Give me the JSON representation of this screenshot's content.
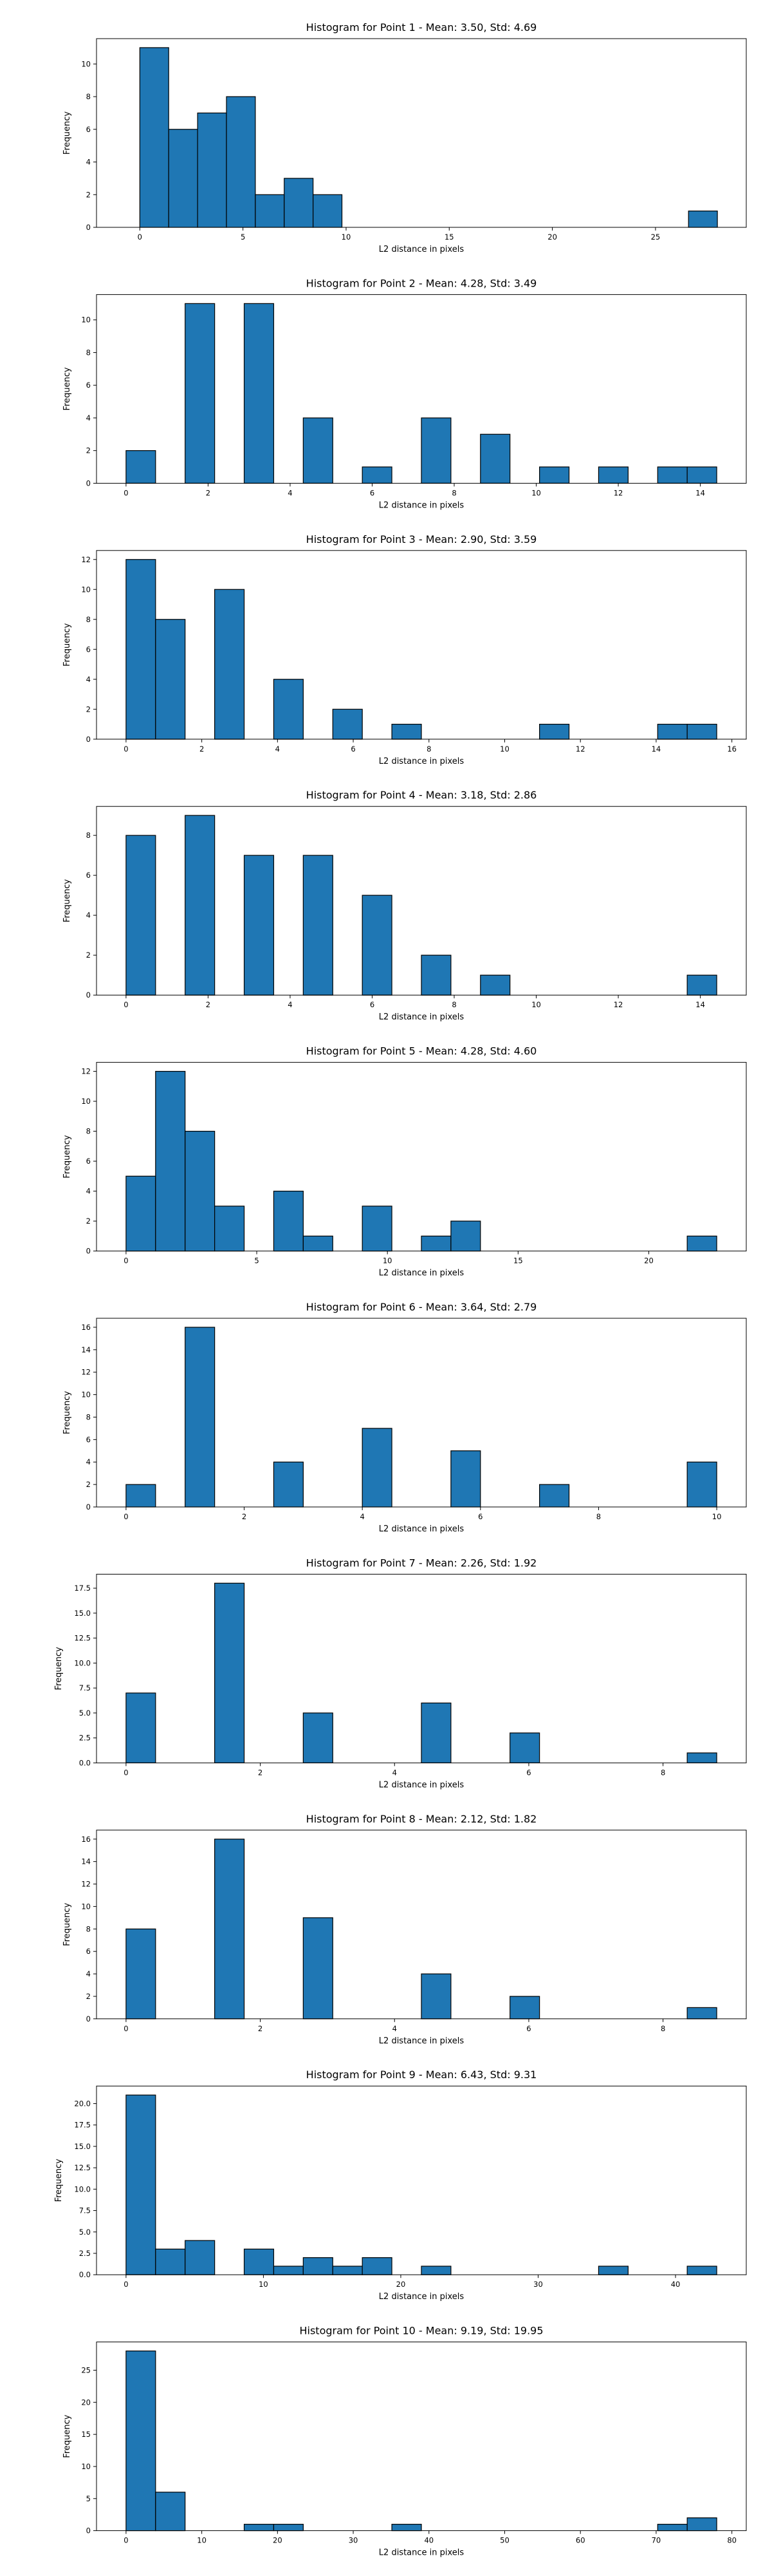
{
  "colors": {
    "bar_fill": "#1f77b4",
    "bar_edge": "#000000",
    "background": "#ffffff"
  },
  "chart_data": [
    {
      "type": "bar",
      "title": "Histogram for Point 1 - Mean: 3.50, Std: 4.69",
      "xlabel": "L2 distance in pixels",
      "ylabel": "Frequency",
      "grid": false,
      "legend": "none",
      "xlim": [
        -2.1,
        29.4
      ],
      "ylim": [
        0,
        11.55
      ],
      "xticks": [
        0,
        5,
        10,
        15,
        20,
        25
      ],
      "yticks": [
        0,
        2,
        4,
        6,
        8,
        10
      ],
      "bins": [
        {
          "x0": 0.0,
          "x1": 1.4,
          "count": 11
        },
        {
          "x0": 1.4,
          "x1": 2.8,
          "count": 6
        },
        {
          "x0": 2.8,
          "x1": 4.2,
          "count": 7
        },
        {
          "x0": 4.2,
          "x1": 5.6,
          "count": 8
        },
        {
          "x0": 5.6,
          "x1": 7.0,
          "count": 2
        },
        {
          "x0": 7.0,
          "x1": 8.4,
          "count": 3
        },
        {
          "x0": 8.4,
          "x1": 9.8,
          "count": 2
        },
        {
          "x0": 26.6,
          "x1": 28.0,
          "count": 1
        }
      ]
    },
    {
      "type": "bar",
      "title": "Histogram for Point 2 - Mean: 4.28, Std: 3.49",
      "xlabel": "L2 distance in pixels",
      "ylabel": "Frequency",
      "grid": false,
      "legend": "none",
      "xlim": [
        -0.72,
        15.12
      ],
      "ylim": [
        0,
        11.55
      ],
      "xticks": [
        0,
        2,
        4,
        6,
        8,
        10,
        12,
        14
      ],
      "yticks": [
        0,
        2,
        4,
        6,
        8,
        10
      ],
      "bins": [
        {
          "x0": 0.0,
          "x1": 0.72,
          "count": 2
        },
        {
          "x0": 1.44,
          "x1": 2.16,
          "count": 11
        },
        {
          "x0": 2.88,
          "x1": 3.6,
          "count": 11
        },
        {
          "x0": 4.32,
          "x1": 5.04,
          "count": 4
        },
        {
          "x0": 5.76,
          "x1": 6.48,
          "count": 1
        },
        {
          "x0": 7.2,
          "x1": 7.92,
          "count": 4
        },
        {
          "x0": 8.64,
          "x1": 9.36,
          "count": 3
        },
        {
          "x0": 10.08,
          "x1": 10.8,
          "count": 1
        },
        {
          "x0": 11.52,
          "x1": 12.24,
          "count": 1
        },
        {
          "x0": 12.96,
          "x1": 13.68,
          "count": 1
        },
        {
          "x0": 13.68,
          "x1": 14.4,
          "count": 1
        }
      ]
    },
    {
      "type": "bar",
      "title": "Histogram for Point 3 - Mean: 2.90, Std: 3.59",
      "xlabel": "L2 distance in pixels",
      "ylabel": "Frequency",
      "grid": false,
      "legend": "none",
      "xlim": [
        -0.78,
        16.38
      ],
      "ylim": [
        0,
        12.6
      ],
      "xticks": [
        0,
        2,
        4,
        6,
        8,
        10,
        12,
        14,
        16
      ],
      "yticks": [
        0,
        2,
        4,
        6,
        8,
        10,
        12
      ],
      "bins": [
        {
          "x0": 0.0,
          "x1": 0.78,
          "count": 12
        },
        {
          "x0": 0.78,
          "x1": 1.56,
          "count": 8
        },
        {
          "x0": 2.34,
          "x1": 3.12,
          "count": 10
        },
        {
          "x0": 3.9,
          "x1": 4.68,
          "count": 4
        },
        {
          "x0": 5.46,
          "x1": 6.24,
          "count": 2
        },
        {
          "x0": 7.02,
          "x1": 7.8,
          "count": 1
        },
        {
          "x0": 10.92,
          "x1": 11.7,
          "count": 1
        },
        {
          "x0": 14.04,
          "x1": 14.82,
          "count": 1
        },
        {
          "x0": 14.82,
          "x1": 15.6,
          "count": 1
        }
      ]
    },
    {
      "type": "bar",
      "title": "Histogram for Point 4 - Mean: 3.18, Std: 2.86",
      "xlabel": "L2 distance in pixels",
      "ylabel": "Frequency",
      "grid": false,
      "legend": "none",
      "xlim": [
        -0.72,
        15.12
      ],
      "ylim": [
        0,
        9.45
      ],
      "xticks": [
        0,
        2,
        4,
        6,
        8,
        10,
        12,
        14
      ],
      "yticks": [
        0,
        2,
        4,
        6,
        8
      ],
      "bins": [
        {
          "x0": 0.0,
          "x1": 0.72,
          "count": 8
        },
        {
          "x0": 1.44,
          "x1": 2.16,
          "count": 9
        },
        {
          "x0": 2.88,
          "x1": 3.6,
          "count": 7
        },
        {
          "x0": 4.32,
          "x1": 5.04,
          "count": 7
        },
        {
          "x0": 5.76,
          "x1": 6.48,
          "count": 5
        },
        {
          "x0": 7.2,
          "x1": 7.92,
          "count": 2
        },
        {
          "x0": 8.64,
          "x1": 9.36,
          "count": 1
        },
        {
          "x0": 13.68,
          "x1": 14.4,
          "count": 1
        }
      ]
    },
    {
      "type": "bar",
      "title": "Histogram for Point 5 - Mean: 4.28, Std: 4.60",
      "xlabel": "L2 distance in pixels",
      "ylabel": "Frequency",
      "grid": false,
      "legend": "none",
      "xlim": [
        -1.13,
        23.73
      ],
      "ylim": [
        0,
        12.6
      ],
      "xticks": [
        0,
        5,
        10,
        15,
        20
      ],
      "yticks": [
        0,
        2,
        4,
        6,
        8,
        10,
        12
      ],
      "bins": [
        {
          "x0": 0.0,
          "x1": 1.13,
          "count": 5
        },
        {
          "x0": 1.13,
          "x1": 2.26,
          "count": 12
        },
        {
          "x0": 2.26,
          "x1": 3.39,
          "count": 8
        },
        {
          "x0": 3.39,
          "x1": 4.52,
          "count": 3
        },
        {
          "x0": 5.65,
          "x1": 6.78,
          "count": 4
        },
        {
          "x0": 6.78,
          "x1": 7.91,
          "count": 1
        },
        {
          "x0": 9.04,
          "x1": 10.17,
          "count": 3
        },
        {
          "x0": 11.3,
          "x1": 12.43,
          "count": 1
        },
        {
          "x0": 12.43,
          "x1": 13.56,
          "count": 2
        },
        {
          "x0": 21.47,
          "x1": 22.6,
          "count": 1
        }
      ]
    },
    {
      "type": "bar",
      "title": "Histogram for Point 6 - Mean: 3.64, Std: 2.79",
      "xlabel": "L2 distance in pixels",
      "ylabel": "Frequency",
      "grid": false,
      "legend": "none",
      "xlim": [
        -0.5,
        10.5
      ],
      "ylim": [
        0,
        16.8
      ],
      "xticks": [
        0,
        2,
        4,
        6,
        8,
        10
      ],
      "yticks": [
        0,
        2,
        4,
        6,
        8,
        10,
        12,
        14,
        16
      ],
      "bins": [
        {
          "x0": 0.0,
          "x1": 0.5,
          "count": 2
        },
        {
          "x0": 1.0,
          "x1": 1.5,
          "count": 16
        },
        {
          "x0": 2.5,
          "x1": 3.0,
          "count": 4
        },
        {
          "x0": 4.0,
          "x1": 4.5,
          "count": 7
        },
        {
          "x0": 5.5,
          "x1": 6.0,
          "count": 5
        },
        {
          "x0": 7.0,
          "x1": 7.5,
          "count": 2
        },
        {
          "x0": 9.5,
          "x1": 10.0,
          "count": 4
        }
      ]
    },
    {
      "type": "bar",
      "title": "Histogram for Point 7 - Mean: 2.26, Std: 1.92",
      "xlabel": "L2 distance in pixels",
      "ylabel": "Frequency",
      "grid": false,
      "legend": "none",
      "xlim": [
        -0.44,
        9.24
      ],
      "ylim": [
        0,
        18.9
      ],
      "xticks": [
        0,
        2,
        4,
        6,
        8
      ],
      "yticks": [
        0.0,
        2.5,
        5.0,
        7.5,
        10.0,
        12.5,
        15.0,
        17.5
      ],
      "ytick_labels": [
        "0.0",
        "2.5",
        "5.0",
        "7.5",
        "10.0",
        "12.5",
        "15.0",
        "17.5"
      ],
      "bins": [
        {
          "x0": 0.0,
          "x1": 0.44,
          "count": 7
        },
        {
          "x0": 1.32,
          "x1": 1.76,
          "count": 18
        },
        {
          "x0": 2.64,
          "x1": 3.08,
          "count": 5
        },
        {
          "x0": 4.4,
          "x1": 4.84,
          "count": 6
        },
        {
          "x0": 5.72,
          "x1": 6.16,
          "count": 3
        },
        {
          "x0": 8.36,
          "x1": 8.8,
          "count": 1
        }
      ]
    },
    {
      "type": "bar",
      "title": "Histogram for Point 8 - Mean: 2.12, Std: 1.82",
      "xlabel": "L2 distance in pixels",
      "ylabel": "Frequency",
      "grid": false,
      "legend": "none",
      "xlim": [
        -0.44,
        9.24
      ],
      "ylim": [
        0,
        16.8
      ],
      "xticks": [
        0,
        2,
        4,
        6,
        8
      ],
      "yticks": [
        0,
        2,
        4,
        6,
        8,
        10,
        12,
        14,
        16
      ],
      "bins": [
        {
          "x0": 0.0,
          "x1": 0.44,
          "count": 8
        },
        {
          "x0": 1.32,
          "x1": 1.76,
          "count": 16
        },
        {
          "x0": 2.64,
          "x1": 3.08,
          "count": 9
        },
        {
          "x0": 4.4,
          "x1": 4.84,
          "count": 4
        },
        {
          "x0": 5.72,
          "x1": 6.16,
          "count": 2
        },
        {
          "x0": 8.36,
          "x1": 8.8,
          "count": 1
        }
      ]
    },
    {
      "type": "bar",
      "title": "Histogram for Point 9 - Mean: 6.43, Std: 9.31",
      "xlabel": "L2 distance in pixels",
      "ylabel": "Frequency",
      "grid": false,
      "legend": "none",
      "xlim": [
        -2.15,
        45.15
      ],
      "ylim": [
        0,
        22.05
      ],
      "xticks": [
        0,
        10,
        20,
        30,
        40
      ],
      "yticks": [
        0.0,
        2.5,
        5.0,
        7.5,
        10.0,
        12.5,
        15.0,
        17.5,
        20.0
      ],
      "ytick_labels": [
        "0.0",
        "2.5",
        "5.0",
        "7.5",
        "10.0",
        "12.5",
        "15.0",
        "17.5",
        "20.0"
      ],
      "bins": [
        {
          "x0": 0.0,
          "x1": 2.15,
          "count": 21
        },
        {
          "x0": 2.15,
          "x1": 4.3,
          "count": 3
        },
        {
          "x0": 4.3,
          "x1": 6.45,
          "count": 4
        },
        {
          "x0": 8.6,
          "x1": 10.75,
          "count": 3
        },
        {
          "x0": 10.75,
          "x1": 12.9,
          "count": 1
        },
        {
          "x0": 12.9,
          "x1": 15.05,
          "count": 2
        },
        {
          "x0": 15.05,
          "x1": 17.2,
          "count": 1
        },
        {
          "x0": 17.2,
          "x1": 19.35,
          "count": 2
        },
        {
          "x0": 21.5,
          "x1": 23.65,
          "count": 1
        },
        {
          "x0": 34.4,
          "x1": 36.55,
          "count": 1
        },
        {
          "x0": 40.85,
          "x1": 43.0,
          "count": 1
        }
      ]
    },
    {
      "type": "bar",
      "title": "Histogram for Point 10 - Mean: 9.19, Std: 19.95",
      "xlabel": "L2 distance in pixels",
      "ylabel": "Frequency",
      "grid": false,
      "legend": "none",
      "xlim": [
        -3.9,
        81.9
      ],
      "ylim": [
        0,
        29.4
      ],
      "xticks": [
        0,
        10,
        20,
        30,
        40,
        50,
        60,
        70,
        80
      ],
      "yticks": [
        0,
        5,
        10,
        15,
        20,
        25
      ],
      "bins": [
        {
          "x0": 0.0,
          "x1": 3.9,
          "count": 28
        },
        {
          "x0": 3.9,
          "x1": 7.8,
          "count": 6
        },
        {
          "x0": 15.6,
          "x1": 19.5,
          "count": 1
        },
        {
          "x0": 19.5,
          "x1": 23.4,
          "count": 1
        },
        {
          "x0": 35.1,
          "x1": 39.0,
          "count": 1
        },
        {
          "x0": 70.2,
          "x1": 74.1,
          "count": 1
        },
        {
          "x0": 74.1,
          "x1": 78.0,
          "count": 2
        }
      ]
    }
  ]
}
